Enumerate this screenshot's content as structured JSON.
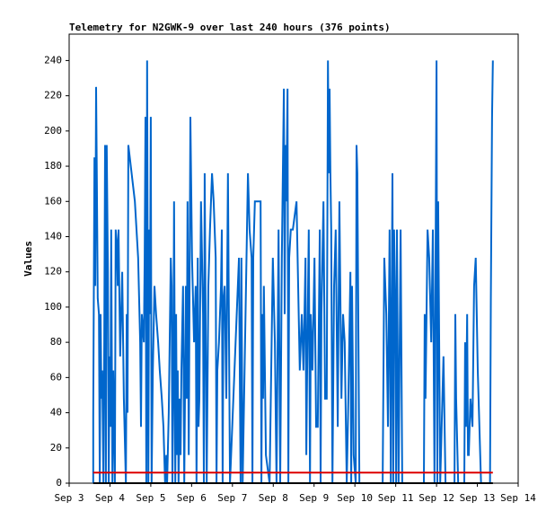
{
  "chart_data": {
    "type": "line",
    "title": "Telemetry for N2GWK-9 over last 240 hours (376 points)",
    "y_label": "Values",
    "xlim": [
      3,
      14
    ],
    "ylim": [
      0,
      255
    ],
    "xticks": [
      {
        "value": 3,
        "label": "Sep 3"
      },
      {
        "value": 4,
        "label": "Sep 4"
      },
      {
        "value": 5,
        "label": "Sep 5"
      },
      {
        "value": 6,
        "label": "Sep 6"
      },
      {
        "value": 7,
        "label": "Sep 7"
      },
      {
        "value": 8,
        "label": "Sep 8"
      },
      {
        "value": 9,
        "label": "Sep 9"
      },
      {
        "value": 10,
        "label": "Sep 10"
      },
      {
        "value": 11,
        "label": "Sep 11"
      },
      {
        "value": 12,
        "label": "Sep 12"
      },
      {
        "value": 13,
        "label": "Sep 13"
      },
      {
        "value": 14,
        "label": "Sep 14"
      }
    ],
    "yticks": [
      0,
      20,
      40,
      60,
      80,
      100,
      120,
      140,
      160,
      180,
      200,
      220,
      240
    ],
    "series": [
      {
        "color": "#0066cc",
        "x": [
          3.59,
          3.59,
          3.62,
          3.64,
          3.66,
          3.68,
          3.7,
          3.73,
          3.75,
          3.77,
          3.79,
          3.81,
          3.84,
          3.86,
          3.88,
          3.9,
          3.92,
          3.95,
          3.97,
          3.99,
          4.01,
          4.03,
          4.06,
          4.08,
          4.12,
          4.14,
          4.17,
          4.19,
          4.21,
          4.25,
          4.3,
          4.34,
          4.39,
          4.41,
          4.43,
          4.45,
          4.61,
          4.69,
          4.74,
          4.76,
          4.78,
          4.83,
          4.85,
          4.87,
          4.89,
          4.91,
          4.94,
          4.96,
          4.98,
          5.0,
          5.02,
          5.05,
          5.09,
          5.13,
          5.18,
          5.22,
          5.27,
          5.31,
          5.35,
          5.38,
          5.4,
          5.44,
          5.49,
          5.51,
          5.53,
          5.55,
          5.57,
          5.6,
          5.62,
          5.64,
          5.66,
          5.68,
          5.71,
          5.73,
          5.75,
          5.79,
          5.82,
          5.86,
          5.88,
          5.9,
          5.93,
          5.97,
          6.01,
          6.06,
          6.1,
          6.12,
          6.15,
          6.17,
          6.19,
          6.23,
          6.28,
          6.3,
          6.32,
          6.37,
          6.41,
          6.45,
          6.5,
          6.54,
          6.59,
          6.61,
          6.63,
          6.67,
          6.72,
          6.74,
          6.76,
          6.78,
          6.81,
          6.85,
          6.89,
          6.94,
          7.16,
          7.2,
          7.22,
          7.25,
          7.38,
          7.42,
          7.47,
          7.49,
          7.51,
          7.55,
          7.69,
          7.71,
          7.73,
          7.75,
          7.77,
          7.82,
          7.91,
          7.99,
          8.04,
          8.08,
          8.13,
          8.17,
          8.21,
          8.26,
          8.28,
          8.3,
          8.32,
          8.35,
          8.37,
          8.39,
          8.43,
          8.48,
          8.57,
          8.61,
          8.65,
          8.7,
          8.74,
          8.79,
          8.81,
          8.83,
          8.87,
          8.9,
          8.92,
          8.96,
          9.01,
          9.05,
          9.09,
          9.14,
          9.16,
          9.18,
          9.23,
          9.27,
          9.31,
          9.34,
          9.36,
          9.38,
          9.4,
          9.42,
          9.45,
          9.49,
          9.53,
          9.58,
          9.62,
          9.67,
          9.71,
          9.75,
          9.8,
          9.84,
          9.89,
          9.91,
          9.93,
          9.97,
          10.02,
          10.04,
          10.06,
          10.11,
          10.68,
          10.7,
          10.72,
          10.77,
          10.81,
          10.85,
          10.88,
          10.9,
          10.92,
          10.94,
          10.96,
          10.99,
          11.01,
          11.03,
          11.07,
          11.12,
          11.16,
          11.69,
          11.71,
          11.73,
          11.78,
          11.82,
          11.87,
          11.91,
          11.95,
          12.0,
          12.02,
          12.04,
          12.09,
          12.17,
          12.22,
          12.44,
          12.46,
          12.48,
          12.53,
          12.68,
          12.7,
          12.72,
          12.75,
          12.77,
          12.79,
          12.83,
          12.88,
          12.92,
          12.96,
          13.01,
          13.05,
          13.09,
          13.31,
          13.33,
          13.36,
          13.38
        ],
        "values": [
          0,
          38,
          185,
          112,
          225,
          168,
          105,
          96,
          0,
          96,
          48,
          64,
          0,
          80,
          192,
          0,
          192,
          120,
          0,
          72,
          32,
          144,
          0,
          64,
          0,
          144,
          136,
          112,
          144,
          72,
          120,
          48,
          0,
          96,
          40,
          192,
          160,
          128,
          80,
          32,
          96,
          80,
          128,
          208,
          0,
          240,
          0,
          144,
          96,
          208,
          0,
          64,
          112,
          96,
          80,
          64,
          48,
          32,
          0,
          16,
          0,
          40,
          128,
          112,
          0,
          48,
          160,
          0,
          96,
          16,
          64,
          0,
          48,
          16,
          64,
          112,
          0,
          112,
          48,
          160,
          16,
          208,
          128,
          80,
          112,
          0,
          128,
          32,
          48,
          160,
          96,
          0,
          176,
          0,
          112,
          144,
          176,
          160,
          128,
          0,
          64,
          80,
          112,
          144,
          0,
          104,
          112,
          48,
          176,
          0,
          128,
          0,
          128,
          0,
          176,
          144,
          128,
          0,
          128,
          160,
          160,
          0,
          96,
          48,
          112,
          16,
          0,
          128,
          80,
          0,
          144,
          0,
          128,
          224,
          96,
          192,
          160,
          224,
          0,
          128,
          144,
          144,
          160,
          112,
          64,
          96,
          64,
          128,
          16,
          64,
          144,
          0,
          96,
          64,
          128,
          32,
          32,
          144,
          0,
          96,
          160,
          48,
          48,
          240,
          176,
          224,
          176,
          144,
          0,
          112,
          144,
          32,
          160,
          48,
          96,
          80,
          0,
          48,
          120,
          0,
          112,
          16,
          0,
          192,
          176,
          0,
          0,
          64,
          128,
          96,
          32,
          144,
          0,
          96,
          176,
          0,
          144,
          96,
          0,
          144,
          0,
          144,
          0,
          0,
          96,
          48,
          144,
          128,
          80,
          144,
          0,
          240,
          0,
          160,
          0,
          72,
          0,
          0,
          96,
          48,
          0,
          0,
          80,
          32,
          96,
          16,
          16,
          48,
          32,
          112,
          128,
          64,
          32,
          0,
          0,
          104,
          208,
          240
        ]
      },
      {
        "color": "#dd0000",
        "x": [
          3.59,
          13.38
        ],
        "values": [
          6,
          6
        ]
      },
      {
        "color": "#000000",
        "x": [
          3.59,
          13.38
        ],
        "values": [
          0,
          0
        ]
      }
    ]
  }
}
